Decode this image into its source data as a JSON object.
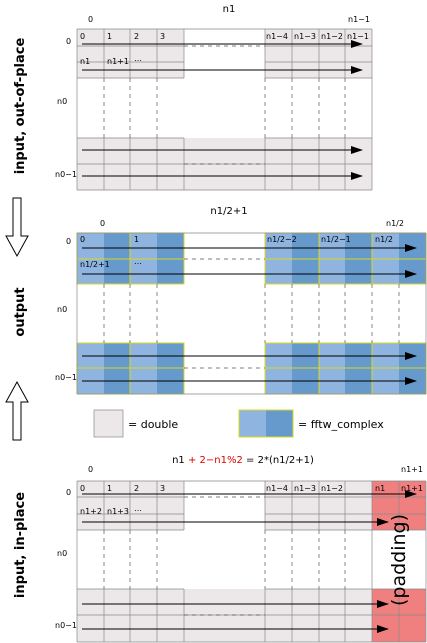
{
  "side_labels": {
    "input_out_of_place": "input, out-of-place",
    "output": "output",
    "input_in_place": "input, in-place"
  },
  "section1": {
    "title": "n1",
    "col_first": "0",
    "col_last": "n1−1",
    "row_first": "0",
    "row_mid": "n0",
    "row_last": "n0−1",
    "row0_cells": [
      "0",
      "1",
      "2",
      "3",
      "n1−4",
      "n1−3",
      "n1−2",
      "n1−1"
    ],
    "row1_cells": [
      "n1",
      "n1+1",
      "…"
    ]
  },
  "section2": {
    "title": "n1/2+1",
    "col_first": "0",
    "col_last": "n1/2",
    "row_first": "0",
    "row_mid": "n0",
    "row_last": "n0−1",
    "row0_cells": [
      "0",
      "1",
      "n1/2−2",
      "n1/2−1",
      "n1/2"
    ],
    "row1_cells": [
      "n1/2+1",
      "…"
    ]
  },
  "legend": {
    "double": "= double",
    "complex": "= fftw_complex"
  },
  "section3": {
    "title_prefix": "n1 ",
    "title_red": "+ 2−n1%2",
    "title_suffix": " = 2*(n1/2+1)",
    "col_first": "0",
    "col_last": "n1+1",
    "row_first": "0",
    "row_mid": "n0",
    "row_last": "n0−1",
    "row0_cells": [
      "0",
      "1",
      "2",
      "3",
      "n1−4",
      "n1−3",
      "n1−2",
      "n1",
      "n1+1"
    ],
    "row1_cells": [
      "n1+2",
      "n1+3",
      "…"
    ],
    "padding": "(padding)"
  },
  "colors": {
    "double_fill": "#ece8ea",
    "complex_light": "#8fb4e0",
    "complex_dark": "#6699cc",
    "complex_border": "#d8d820",
    "padding_fill": "#f08080",
    "red_text": "#dd0000"
  }
}
